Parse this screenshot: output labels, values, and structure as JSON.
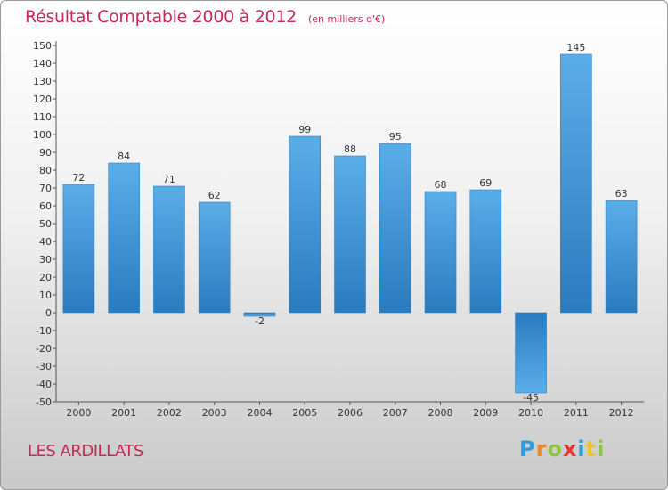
{
  "chart_data": {
    "type": "bar",
    "title": "Résultat Comptable 2000 à 2012",
    "subtitle": "(en milliers d'€)",
    "categories": [
      "2000",
      "2001",
      "2002",
      "2003",
      "2004",
      "2005",
      "2006",
      "2007",
      "2008",
      "2009",
      "2010",
      "2011",
      "2012"
    ],
    "values": [
      72,
      84,
      71,
      62,
      -2,
      99,
      88,
      95,
      68,
      69,
      -45,
      145,
      63
    ],
    "value_labels": [
      "72",
      "84",
      "71",
      "62",
      "-2",
      "99",
      "88",
      "95",
      "68",
      "69",
      "-45",
      "145",
      "63"
    ],
    "ylim": [
      -50,
      150
    ],
    "yticks": [
      150,
      140,
      130,
      120,
      110,
      100,
      90,
      80,
      70,
      60,
      50,
      40,
      30,
      20,
      10,
      0,
      -10,
      -20,
      -30,
      -40,
      -50
    ],
    "ytick_labels": [
      "150",
      "140",
      "130",
      "120",
      "110",
      "100",
      "90",
      "80",
      "70",
      "60",
      "50",
      "40",
      "30",
      "20",
      "10",
      "0",
      "-10",
      "-20",
      "-30",
      "-40",
      "-50"
    ],
    "xlabel": "",
    "ylabel": "",
    "grid": false,
    "bar_color_top": "#5aaee8",
    "bar_color_bottom": "#2a7bbf"
  },
  "footer": {
    "commune": "LES ARDILLATS"
  },
  "brand": {
    "letters": [
      "P",
      "r",
      "o",
      "x",
      "i",
      "t",
      "i"
    ],
    "colors": [
      "#2e9de0",
      "#f08a1c",
      "#8cc63f",
      "#e8342e",
      "#2e9de0",
      "#f0c419",
      "#8cc63f"
    ]
  }
}
